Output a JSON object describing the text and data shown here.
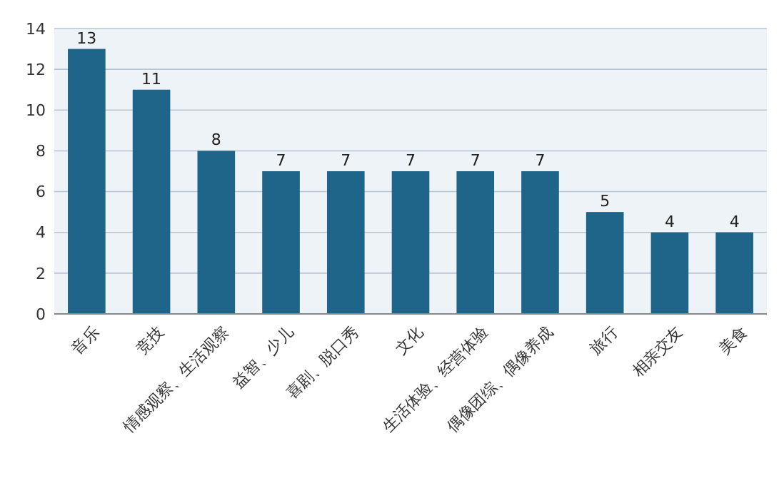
{
  "chart_data": {
    "type": "bar",
    "categories": [
      "音乐",
      "竞技",
      "情感观察、生活观察",
      "益智、少儿",
      "喜剧、脱口秀",
      "文化",
      "生活体验、经营体验",
      "偶像团综、偶像养成",
      "旅行",
      "相亲交友",
      "美食"
    ],
    "values": [
      13,
      11,
      8,
      7,
      7,
      7,
      7,
      7,
      5,
      4,
      4
    ],
    "color": "#1f6489",
    "ylim": [
      0,
      14
    ],
    "yticks": [
      0,
      2,
      4,
      6,
      8,
      10,
      12,
      14
    ],
    "grid": "y",
    "data_labels": true
  }
}
